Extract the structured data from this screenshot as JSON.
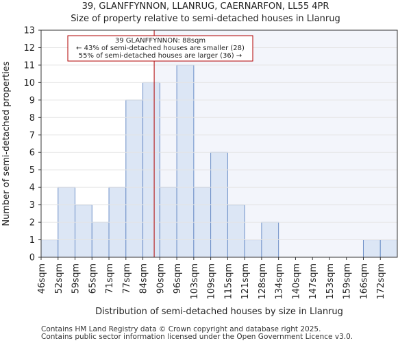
{
  "chart_data": {
    "type": "bar",
    "title": "39, GLANFFYNNON, LLANRUG, CAERNARFON, LL55 4PR",
    "subtitle": "Size of property relative to semi-detached houses in Llanrug",
    "xlabel": "Distribution of semi-detached houses by size in Llanrug",
    "ylabel": "Number of semi-detached properties",
    "categories": [
      "46sqm",
      "52sqm",
      "59sqm",
      "65sqm",
      "71sqm",
      "77sqm",
      "84sqm",
      "90sqm",
      "96sqm",
      "103sqm",
      "109sqm",
      "115sqm",
      "121sqm",
      "128sqm",
      "134sqm",
      "140sqm",
      "147sqm",
      "153sqm",
      "159sqm",
      "166sqm",
      "172sqm"
    ],
    "values": [
      1,
      4,
      3,
      2,
      4,
      9,
      10,
      4,
      11,
      4,
      6,
      3,
      1,
      2,
      0,
      0,
      0,
      0,
      0,
      1,
      1
    ],
    "ylim": [
      0,
      13
    ],
    "yticks": [
      0,
      1,
      2,
      3,
      4,
      5,
      6,
      7,
      8,
      9,
      10,
      11,
      12,
      13
    ],
    "marker_value": 88,
    "annotation": {
      "line1": "39 GLANFFYNNON: 88sqm",
      "line2": "← 43% of semi-detached houses are smaller (28)",
      "line3": "55% of semi-detached houses are larger (36) →"
    },
    "bar_color": "#dce6f5",
    "bar_edge": "#6b8ec7",
    "marker_color": "#b00000"
  },
  "footer": {
    "line1": "Contains HM Land Registry data © Crown copyright and database right 2025.",
    "line2": "Contains public sector information licensed under the Open Government Licence v3.0."
  }
}
